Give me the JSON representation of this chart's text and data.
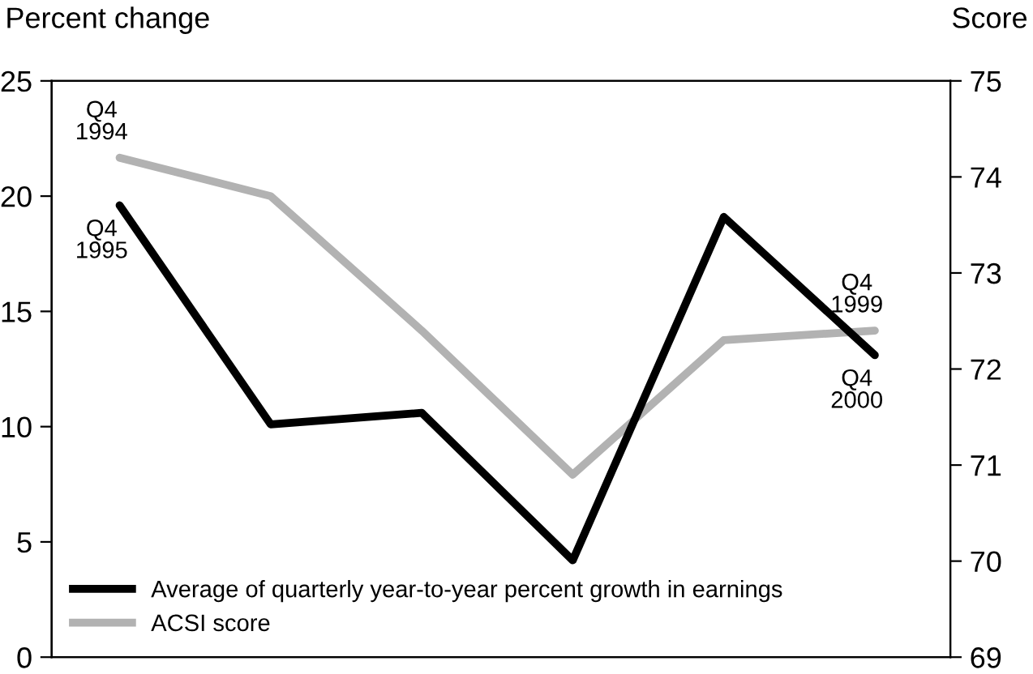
{
  "chart_data": {
    "type": "line",
    "ylabel": "Percent change",
    "y2label": "Score",
    "categories": [
      null,
      null,
      null,
      null,
      null,
      null
    ],
    "series": [
      {
        "name": "Average of quarterly year-to-year percent growth in earnings",
        "color": "#000000",
        "values": [
          19.6,
          10.1,
          10.6,
          4.2,
          19.1,
          13.1
        ]
      },
      {
        "name": "ACSI score",
        "color": "#b2b2b2",
        "axis": "y2",
        "values": [
          74.2,
          73.8,
          72.4,
          70.9,
          72.3,
          72.4
        ]
      }
    ],
    "ylim": [
      0,
      25
    ],
    "yticks": [
      0,
      5,
      10,
      15,
      20,
      25
    ],
    "y2lim": [
      69,
      75
    ],
    "y2ticks": [
      69,
      70,
      71,
      72,
      73,
      74,
      75
    ],
    "annotations": [
      "Q4\n1994",
      "Q4\n1995",
      "Q4\n1999",
      "Q4\n2000"
    ],
    "grid": false,
    "legend": "bottom left",
    "marker": "none",
    "line_style": "solid"
  }
}
